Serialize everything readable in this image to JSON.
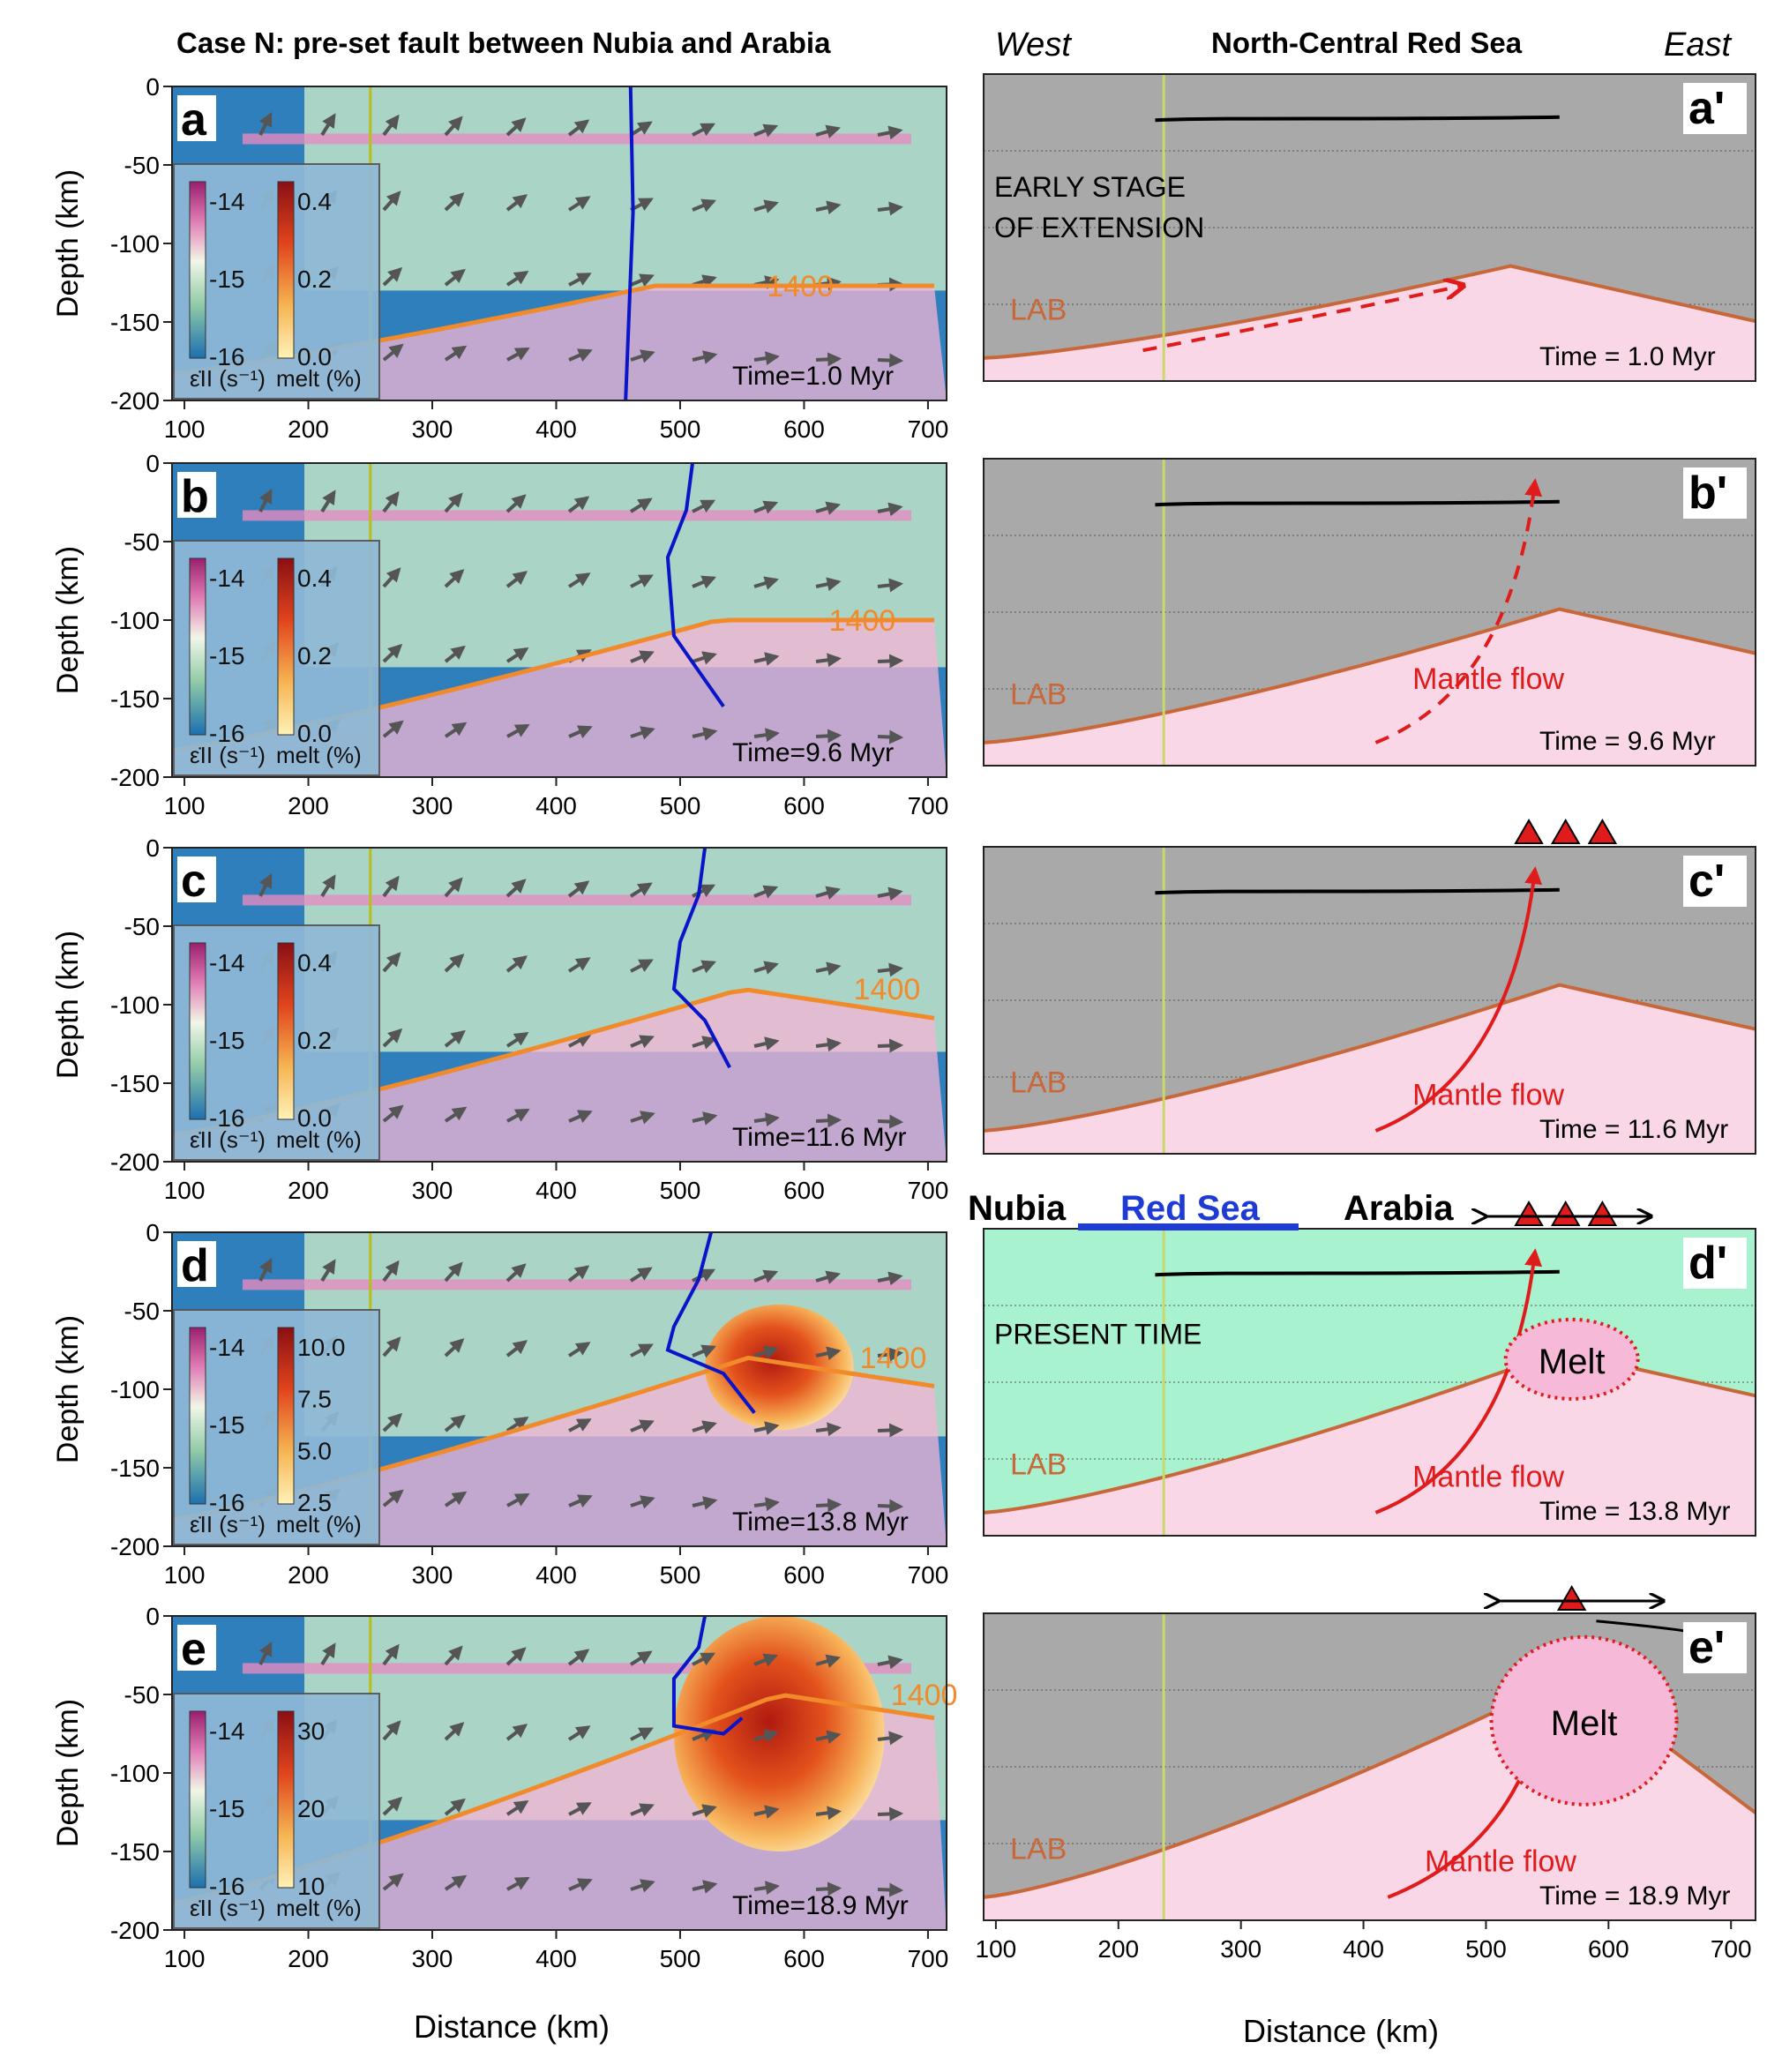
{
  "left_title": "Case N: pre-set fault between Nubia and Arabia",
  "right_header": {
    "west": "West",
    "title": "North-Central Red Sea",
    "east": "East"
  },
  "left_panels": [
    {
      "label": "a",
      "time": "Time=1.0 Myr",
      "melt_ticks": [
        "0.4",
        "0.2",
        "0.0"
      ],
      "strain_ticks": [
        "-14",
        "-15",
        "-16"
      ],
      "isotherm_label": "1400"
    },
    {
      "label": "b",
      "time": "Time=9.6 Myr",
      "melt_ticks": [
        "0.4",
        "0.2",
        "0.0"
      ],
      "strain_ticks": [
        "-14",
        "-15",
        "-16"
      ],
      "isotherm_label": "1400"
    },
    {
      "label": "c",
      "time": "Time=11.6 Myr",
      "melt_ticks": [
        "0.4",
        "0.2",
        "0.0"
      ],
      "strain_ticks": [
        "-14",
        "-15",
        "-16"
      ],
      "isotherm_label": "1400"
    },
    {
      "label": "d",
      "time": "Time=13.8 Myr",
      "melt_ticks": [
        "10.0",
        "7.5",
        "5.0",
        "2.5"
      ],
      "strain_ticks": [
        "-14",
        "-15",
        "-16"
      ],
      "isotherm_label": "1400"
    },
    {
      "label": "e",
      "time": "Time=18.9 Myr",
      "melt_ticks": [
        "30",
        "20",
        "10"
      ],
      "strain_ticks": [
        "-14",
        "-15",
        "-16"
      ],
      "isotherm_label": "1400"
    }
  ],
  "left_axes": {
    "y_label": "Depth (km)",
    "x_label": "Distance (km)",
    "y_ticks": [
      "0",
      "-50",
      "-100",
      "-150",
      "-200"
    ],
    "x_ticks": [
      "100",
      "200",
      "300",
      "400",
      "500",
      "600",
      "700"
    ],
    "cbar_strain_label": "ε̇II (s⁻¹)",
    "cbar_melt_label": "melt (%)"
  },
  "right_panels": [
    {
      "label": "a'",
      "time": "Time = 1.0 Myr",
      "notes": [
        "EARLY STAGE",
        "OF EXTENSION"
      ],
      "lab": "LAB"
    },
    {
      "label": "b'",
      "time": "Time = 9.6 Myr",
      "flow": "Mantle flow",
      "lab": "LAB"
    },
    {
      "label": "c'",
      "time": "Time = 11.6 Myr",
      "flow": "Mantle flow",
      "lab": "LAB"
    },
    {
      "label": "d'",
      "time": "Time = 13.8 Myr",
      "flow": "Mantle flow",
      "lab": "LAB",
      "notes": [
        "PRESENT TIME"
      ],
      "melt": "Melt",
      "regions": {
        "nubia": "Nubia",
        "red_sea": "Red Sea",
        "arabia": "Arabia"
      }
    },
    {
      "label": "e'",
      "time": "Time = 18.9 Myr",
      "flow": "Mantle flow",
      "lab": "LAB",
      "melt": "Melt"
    }
  ],
  "right_axes": {
    "x_label": "Distance (km)",
    "x_ticks": [
      "100",
      "200",
      "300",
      "400",
      "500",
      "600",
      "700"
    ]
  },
  "colors": {
    "strain_high": "#c0338a",
    "strain_mid": "#e9f5e4",
    "strain_low": "#1f78b4",
    "isotherm": "#f08a2b",
    "fault": "#0a14c8",
    "marker": "#b7bf1c",
    "lithosphere": "#a9a9a9",
    "asthenosphere": "#f9d7e7",
    "present_crust": "#a8f2cf",
    "flow": "#e01b1b",
    "red_sea": "#1f3bd6"
  }
}
